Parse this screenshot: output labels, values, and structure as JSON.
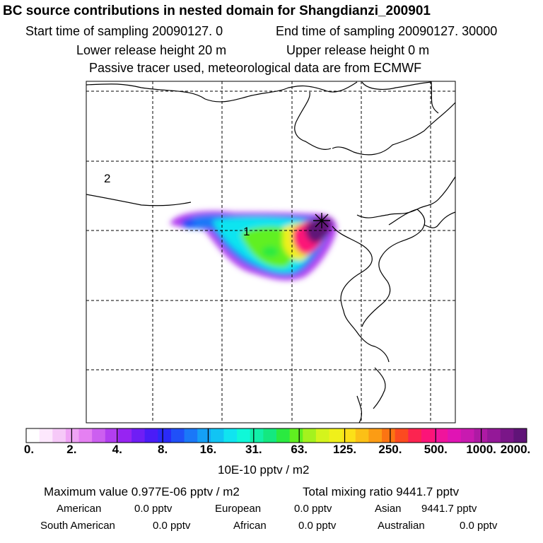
{
  "header": {
    "title": "BC  source contributions in nested domain for Shangdianzi_200901",
    "start_sampling": "Start time of sampling 20090127.     0",
    "end_sampling": "End time of sampling 20090127. 30000",
    "lower_release": "Lower release height   20 m",
    "upper_release": "Upper release height    0 m",
    "tracer_note": "Passive tracer used, meteorological data are from ECMWF"
  },
  "chart_data": {
    "type": "heatmap",
    "region_labels": [
      "1",
      "2"
    ],
    "colorbar": {
      "ticks": [
        "0.",
        "2.",
        "4.",
        "8.",
        "16.",
        "31.",
        "63.",
        "125.",
        "250.",
        "500.",
        "1000.",
        "2000."
      ],
      "colors": [
        "#ffffff",
        "#fde8fd",
        "#f6c9f8",
        "#efa3f5",
        "#e580f2",
        "#cc5ff0",
        "#b23ef0",
        "#9724f2",
        "#6f1ef5",
        "#4a1cf7",
        "#2a2af8",
        "#2050f8",
        "#1a78f8",
        "#15a0f6",
        "#11c4f4",
        "#10e4f0",
        "#10f8d8",
        "#12f0a8",
        "#14e880",
        "#2aea40",
        "#60f020",
        "#a4f21e",
        "#d4f41c",
        "#f0f01a",
        "#fce018",
        "#fcc016",
        "#fc9c14",
        "#fc7412",
        "#fc4a20",
        "#fc2450",
        "#fc1478",
        "#f0149c",
        "#e014b4",
        "#c81ab0",
        "#ae1aa4",
        "#941898",
        "#7a1688",
        "#601478"
      ],
      "unit": "10E-10 pptv / m2"
    }
  },
  "stats": {
    "max_value": "Maximum value  0.977E-06 pptv / m2",
    "total_mixing": "Total mixing ratio     9441.7 pptv",
    "regions": [
      {
        "name": "American",
        "value": "0.0 pptv"
      },
      {
        "name": "European",
        "value": "0.0 pptv"
      },
      {
        "name": "Asian",
        "value": "9441.7 pptv"
      },
      {
        "name": "South American",
        "value": "0.0 pptv"
      },
      {
        "name": "African",
        "value": "0.0 pptv"
      },
      {
        "name": "Australian",
        "value": "0.0 pptv"
      }
    ]
  }
}
